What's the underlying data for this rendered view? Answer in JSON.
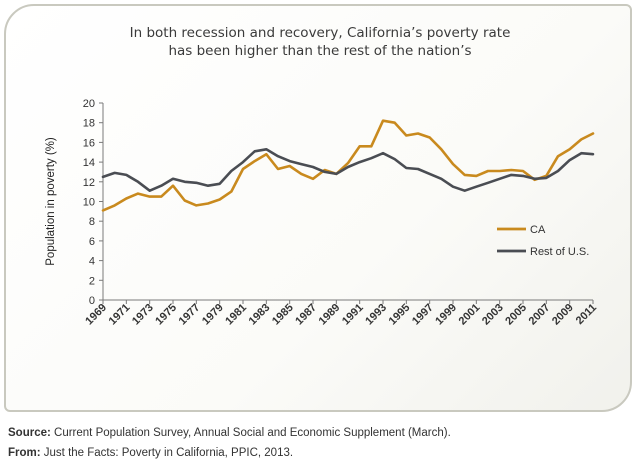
{
  "title_line1": "In both recession and recovery, California’s poverty rate",
  "title_line2": "has been higher than the rest of the nation’s",
  "footer": {
    "source_label": "Source:",
    "source_text": " Current Population Survey, Annual Social and Economic Supplement (March).",
    "from_label": "From:",
    "from_text": " Just the Facts: Poverty in California, PPIC, 2013."
  },
  "colors": {
    "ca": "#c98a1e",
    "rest": "#4a4d53",
    "axis": "#7a7a7a",
    "text": "#333333"
  },
  "chart_data": {
    "type": "line",
    "title": "In both recession and recovery, California’s poverty rate has been higher than the rest of the nation’s",
    "xlabel": "",
    "ylabel": "Population in poverty (%)",
    "ylim": [
      0,
      20
    ],
    "yticks": [
      "0",
      "2",
      "4",
      "6",
      "8",
      "10",
      "12",
      "14",
      "16",
      "18",
      "20"
    ],
    "xticks": [
      "1969",
      "1971",
      "1973",
      "1975",
      "1977",
      "1979",
      "1981",
      "1983",
      "1985",
      "1987",
      "1989",
      "1991",
      "1993",
      "1995",
      "1997",
      "1999",
      "2001",
      "2003",
      "2005",
      "2007",
      "2009",
      "2011"
    ],
    "x": [
      1969,
      1970,
      1971,
      1972,
      1973,
      1974,
      1975,
      1976,
      1977,
      1978,
      1979,
      1980,
      1981,
      1982,
      1983,
      1984,
      1985,
      1986,
      1987,
      1988,
      1989,
      1990,
      1991,
      1992,
      1993,
      1994,
      1995,
      1996,
      1997,
      1998,
      1999,
      2000,
      2001,
      2002,
      2003,
      2004,
      2005,
      2006,
      2007,
      2008,
      2009,
      2010,
      2011
    ],
    "grid": false,
    "legend_position": "right",
    "series": [
      {
        "name": "CA",
        "values": [
          9.1,
          9.6,
          10.3,
          10.8,
          10.5,
          10.5,
          11.6,
          10.1,
          9.6,
          9.8,
          10.2,
          11.0,
          13.3,
          14.1,
          14.8,
          13.3,
          13.6,
          12.8,
          12.3,
          13.2,
          12.8,
          13.9,
          15.6,
          15.6,
          18.2,
          18.0,
          16.7,
          16.9,
          16.5,
          15.3,
          13.8,
          12.7,
          12.6,
          13.1,
          13.1,
          13.2,
          13.1,
          12.2,
          12.6,
          14.6,
          15.3,
          16.3,
          16.9
        ]
      },
      {
        "name": "Rest of U.S.",
        "values": [
          12.5,
          12.9,
          12.7,
          12.0,
          11.1,
          11.6,
          12.3,
          12.0,
          11.9,
          11.6,
          11.8,
          13.1,
          14.0,
          15.1,
          15.3,
          14.6,
          14.1,
          13.8,
          13.5,
          13.0,
          12.8,
          13.5,
          14.0,
          14.4,
          14.9,
          14.3,
          13.4,
          13.3,
          12.8,
          12.3,
          11.5,
          11.1,
          11.5,
          11.9,
          12.3,
          12.7,
          12.6,
          12.3,
          12.4,
          13.1,
          14.2,
          14.9,
          14.8
        ]
      }
    ]
  }
}
